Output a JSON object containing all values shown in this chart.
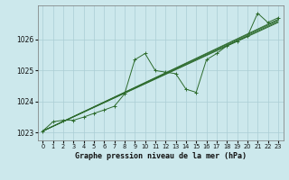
{
  "title": "Graphe pression niveau de la mer (hPa)",
  "bg_color": "#cce8ec",
  "grid_color": "#aacdd4",
  "line_color": "#2d6b2d",
  "xlim": [
    -0.5,
    23.5
  ],
  "ylim": [
    1022.75,
    1027.1
  ],
  "yticks": [
    1023,
    1024,
    1025,
    1026
  ],
  "xticks": [
    0,
    1,
    2,
    3,
    4,
    5,
    6,
    7,
    8,
    9,
    10,
    11,
    12,
    13,
    14,
    15,
    16,
    17,
    18,
    19,
    20,
    21,
    22,
    23
  ],
  "series": [
    [
      1023.05,
      1023.35,
      1023.4,
      1023.4,
      1023.5,
      1023.65,
      1023.75,
      1023.85,
      1024.25,
      1025.35,
      1025.55,
      1025.0,
      1024.95,
      1024.9,
      1024.4,
      1024.3,
      1025.35,
      1025.55,
      1025.8,
      1025.95,
      1026.1,
      1026.85,
      1026.55,
      1026.7
    ],
    [
      1023.05,
      1023.3,
      1023.4,
      1023.4,
      1023.5,
      1023.62,
      1023.75,
      1023.9,
      1024.2,
      1024.55,
      1024.85,
      1024.95,
      1024.95,
      1025.05,
      1025.1,
      1025.2,
      1025.4,
      1025.55,
      1025.75,
      1025.9,
      1026.05,
      1026.55,
      1026.6,
      1026.65
    ],
    [
      1023.05,
      1023.3,
      1023.4,
      1023.4,
      1023.5,
      1023.62,
      1023.75,
      1023.9,
      1024.2,
      1024.55,
      1024.85,
      1024.95,
      1024.95,
      1025.05,
      1025.1,
      1025.2,
      1025.4,
      1025.55,
      1025.75,
      1025.9,
      1026.05,
      1026.65,
      1026.6,
      1026.65
    ],
    [
      1023.05,
      1023.3,
      1023.4,
      1023.4,
      1023.5,
      1023.62,
      1023.75,
      1023.9,
      1024.2,
      1024.55,
      1024.85,
      1024.95,
      1024.95,
      1025.05,
      1025.1,
      1025.2,
      1025.4,
      1025.55,
      1025.75,
      1025.9,
      1026.05,
      1026.75,
      1026.55,
      1026.6
    ]
  ],
  "jagged_series": [
    1023.05,
    1023.35,
    1023.4,
    1023.4,
    1023.5,
    1023.65,
    1023.75,
    1023.85,
    1024.25,
    1025.35,
    1025.55,
    1025.0,
    1024.95,
    1024.9,
    1024.4,
    1024.3,
    1025.35,
    1025.55,
    1025.8,
    1025.95,
    1026.1,
    1026.85,
    1026.55,
    1026.7
  ]
}
